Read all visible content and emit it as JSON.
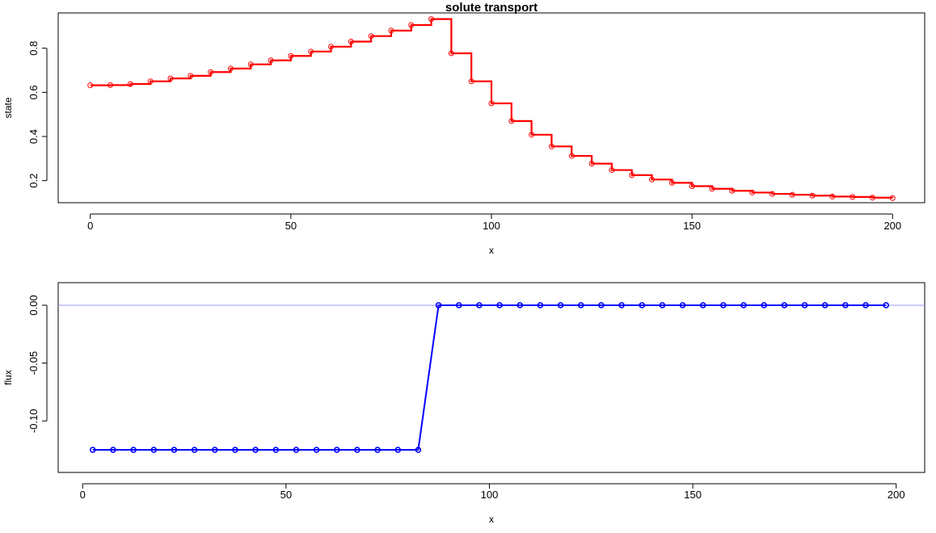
{
  "chart_data": [
    {
      "type": "line",
      "title": "solute transport",
      "xlabel": "x",
      "ylabel": "state",
      "xlim": [
        -8,
        208
      ],
      "ylim": [
        0.1,
        0.96
      ],
      "x_ticks": [
        0,
        50,
        100,
        150,
        200
      ],
      "y_ticks": [
        0.2,
        0.4,
        0.6,
        0.8
      ],
      "x_tick_labels": [
        "0",
        "50",
        "100",
        "150",
        "200"
      ],
      "y_tick_labels": [
        "0.2",
        "0.4",
        "0.6",
        "0.8"
      ],
      "grid": false,
      "colors": {
        "series": "#ff0000"
      },
      "series": [
        {
          "style": "step-with-points",
          "x": [
            0,
            5,
            10,
            15,
            20,
            25,
            30,
            35,
            40,
            45,
            50,
            55,
            60,
            65,
            70,
            75,
            80,
            85,
            90,
            95,
            100,
            105,
            110,
            115,
            120,
            125,
            130,
            135,
            140,
            145,
            150,
            155,
            160,
            165,
            170,
            175,
            180,
            185,
            190,
            195,
            200
          ],
          "values": [
            0.632,
            0.633,
            0.638,
            0.65,
            0.663,
            0.675,
            0.692,
            0.708,
            0.727,
            0.745,
            0.765,
            0.785,
            0.807,
            0.83,
            0.855,
            0.88,
            0.905,
            0.932,
            0.777,
            0.65,
            0.55,
            0.47,
            0.408,
            0.355,
            0.312,
            0.277,
            0.248,
            0.225,
            0.205,
            0.19,
            0.175,
            0.163,
            0.154,
            0.146,
            0.14,
            0.136,
            0.132,
            0.128,
            0.126,
            0.123,
            0.121
          ]
        }
      ]
    },
    {
      "type": "line",
      "title": "",
      "xlabel": "x",
      "ylabel": "flux",
      "xlim": [
        -6,
        207
      ],
      "ylim": [
        -0.1445,
        0.0195
      ],
      "x_ticks": [
        0,
        50,
        100,
        150,
        200
      ],
      "y_ticks": [
        -0.1,
        -0.05,
        0.0
      ],
      "x_tick_labels": [
        "0",
        "50",
        "100",
        "150",
        "200"
      ],
      "y_tick_labels": [
        "-0.10",
        "-0.05",
        "0.00"
      ],
      "grid": false,
      "reference_line": {
        "y": 0,
        "color": "#9999ff"
      },
      "colors": {
        "series": "#0000ff"
      },
      "series": [
        {
          "style": "line-with-points",
          "x": [
            2.5,
            7.5,
            12.5,
            17.5,
            22.5,
            27.5,
            32.5,
            37.5,
            42.5,
            47.5,
            52.5,
            57.5,
            62.5,
            67.5,
            72.5,
            77.5,
            82.5,
            87.5,
            92.5,
            97.5,
            102.5,
            107.5,
            112.5,
            117.5,
            122.5,
            127.5,
            132.5,
            137.5,
            142.5,
            147.5,
            152.5,
            157.5,
            162.5,
            167.5,
            172.5,
            177.5,
            182.5,
            187.5,
            192.5,
            197.5
          ],
          "values": [
            -0.125,
            -0.125,
            -0.125,
            -0.125,
            -0.125,
            -0.125,
            -0.125,
            -0.125,
            -0.125,
            -0.125,
            -0.125,
            -0.125,
            -0.125,
            -0.125,
            -0.125,
            -0.125,
            -0.125,
            0,
            0,
            0,
            0,
            0,
            0,
            0,
            0,
            0,
            0,
            0,
            0,
            0,
            0,
            0,
            0,
            0,
            0,
            0,
            0,
            0,
            0,
            0
          ]
        }
      ]
    }
  ]
}
